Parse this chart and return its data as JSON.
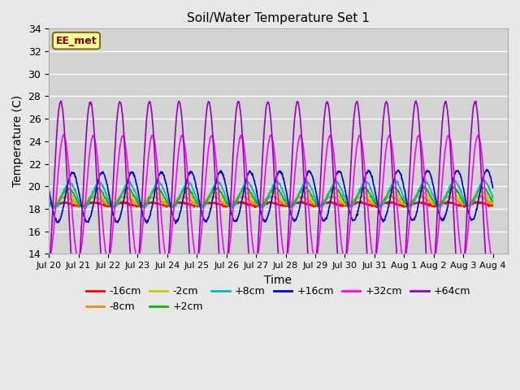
{
  "title": "Soil/Water Temperature Set 1",
  "xlabel": "Time",
  "ylabel": "Temperature (C)",
  "ylim": [
    14,
    34
  ],
  "yticks": [
    14,
    16,
    18,
    20,
    22,
    24,
    26,
    28,
    30,
    32,
    34
  ],
  "background_color": "#e8e8e8",
  "plot_bg_color": "#d3d3d3",
  "grid_color": "#ffffff",
  "annotation_text": "EE_met",
  "annotation_bg": "#ffff99",
  "annotation_border": "#8b6914",
  "depths": [
    -16,
    -8,
    -2,
    2,
    8,
    16,
    32,
    64
  ],
  "labels": [
    "-16cm",
    "-8cm",
    "-2cm",
    "+2cm",
    "+8cm",
    "+16cm",
    "+32cm",
    "+64cm"
  ],
  "colors": [
    "#ff0000",
    "#ff8800",
    "#cccc00",
    "#00bb00",
    "#00bbbb",
    "#0000cc",
    "#ff00ff",
    "#9900bb"
  ],
  "depth_params": {
    "-16": {
      "amp": 0.15,
      "phase": 0.0,
      "base": 18.4,
      "trend": 0.0
    },
    "-8": {
      "amp": 0.35,
      "phase": 0.05,
      "base": 18.7,
      "trend": 0.003
    },
    "-2": {
      "amp": 0.55,
      "phase": 0.1,
      "base": 18.9,
      "trend": 0.005
    },
    "2": {
      "amp": 0.8,
      "phase": 0.15,
      "base": 19.0,
      "trend": 0.007
    },
    "8": {
      "amp": 1.1,
      "phase": 0.2,
      "base": 19.2,
      "trend": 0.01
    },
    "16": {
      "amp": 2.2,
      "phase": 0.3,
      "base": 19.0,
      "trend": 0.015
    },
    "32": {
      "amp": 5.5,
      "phase": 0.0,
      "base": 19.0,
      "trend": 0.0
    },
    "64": {
      "amp": 8.5,
      "phase": 0.9,
      "base": 19.0,
      "trend": 0.0
    }
  },
  "xtick_labels": [
    "Jul 20",
    "Jul 21",
    "Jul 22",
    "Jul 23",
    "Jul 24",
    "Jul 25",
    "Jul 26",
    "Jul 27",
    "Jul 28",
    "Jul 29",
    "Jul 30",
    "Jul 31",
    "Aug 1",
    "Aug 2",
    "Aug 3",
    "Aug 4"
  ],
  "xtick_positions": [
    0,
    1,
    2,
    3,
    4,
    5,
    6,
    7,
    8,
    9,
    10,
    11,
    12,
    13,
    14,
    15
  ],
  "xlim": [
    0,
    15.5
  ],
  "linewidth": 1.2,
  "figsize": [
    6.4,
    4.8
  ],
  "dpi": 100
}
